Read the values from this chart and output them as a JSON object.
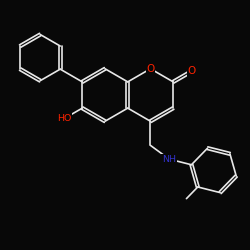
{
  "bg_color": "#080808",
  "bond_color": "#e8e8e8",
  "O_color": "#ff2200",
  "N_color": "#3333cc",
  "lw": 1.2,
  "lfs": 7.0,
  "figsize": [
    2.5,
    2.5
  ],
  "dpi": 100,
  "xlim": [
    0,
    10
  ],
  "ylim": [
    0,
    10
  ]
}
